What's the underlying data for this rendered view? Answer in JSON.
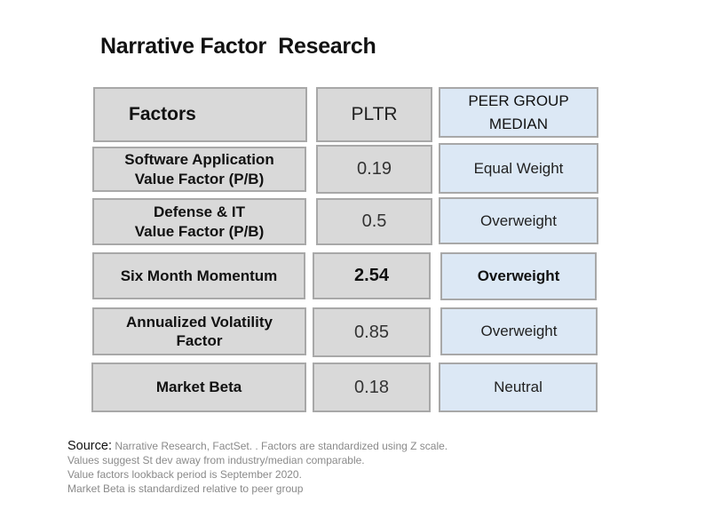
{
  "title": "Narrative Factor  Research",
  "table": {
    "headers": {
      "factor": "Factors",
      "ticker": "PLTR",
      "peer_line1": "PEER GROUP",
      "peer_line2": "MEDIAN"
    },
    "rows": [
      {
        "factor_line1": "Software Application",
        "factor_line2": "Value Factor (P/B)",
        "value": "0.19",
        "peer": "Equal Weight"
      },
      {
        "factor_line1": "Defense & IT",
        "factor_line2": "Value Factor (P/B)",
        "value": "0.5",
        "peer": "Overweight"
      },
      {
        "factor_line1": "Six Month Momentum",
        "factor_line2": "",
        "value": "2.54",
        "peer": "Overweight"
      },
      {
        "factor_line1": "Annualized Volatility",
        "factor_line2": "Factor",
        "value": "0.85",
        "peer": "Overweight"
      },
      {
        "factor_line1": "Market Beta",
        "factor_line2": "",
        "value": "0.18",
        "peer": "Neutral"
      }
    ]
  },
  "footnote": {
    "lead": "Source:",
    "line1": " Narrative Research, FactSet. . Factors are standardized using Z scale.",
    "line2": "Values suggest St dev away from industry/median comparable.",
    "line3": "Value factors lookback period is September 2020.",
    "line4": "Market Beta is standardized relative to peer group"
  },
  "colors": {
    "factor_fill": "#d9d9d9",
    "peer_fill": "#dce8f5",
    "border": "#a8a8a8"
  }
}
